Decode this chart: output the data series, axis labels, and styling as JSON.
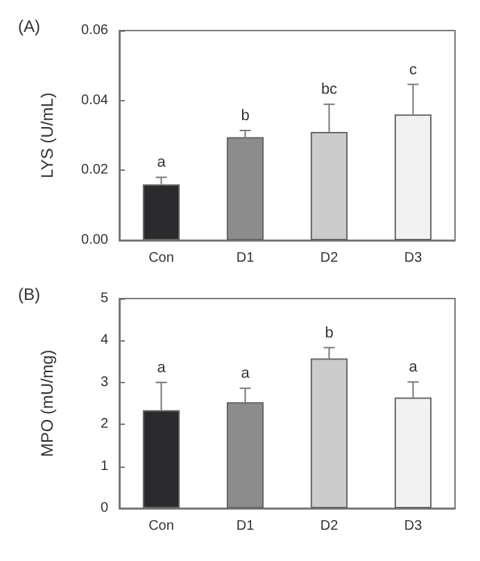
{
  "chart_data": [
    {
      "type": "bar",
      "title": "(A)",
      "ylabel": "LYS (U/mL)",
      "categories": [
        "Con",
        "D1",
        "D2",
        "D3"
      ],
      "values": [
        0.016,
        0.0295,
        0.031,
        0.036
      ],
      "colors": [
        "#2b2b2e",
        "#8c8c8c",
        "#cccccc",
        "#f2f2f2"
      ],
      "errors": [
        [
          0.016,
          0.018
        ],
        [
          0.0295,
          0.0314
        ],
        [
          0.031,
          0.0389
        ],
        [
          0.036,
          0.0446
        ]
      ],
      "ylim": [
        0,
        0.06
      ],
      "yticks": [
        {
          "value": 0,
          "label": "0.00"
        },
        {
          "value": 0.02,
          "label": "0.02"
        },
        {
          "value": 0.04,
          "label": "0.04"
        },
        {
          "value": 0.06,
          "label": "0.06"
        }
      ],
      "grid": false,
      "annotations": [
        {
          "text": "a",
          "x": "Con",
          "y": 0.018
        },
        {
          "text": "b",
          "x": "D1",
          "y": 0.0314
        },
        {
          "text": "bc",
          "x": "D2",
          "y": 0.0389
        },
        {
          "text": "c",
          "x": "D3",
          "y": 0.0446
        }
      ]
    },
    {
      "type": "bar",
      "title": "(B)",
      "ylabel": "MPO (mU/mg)",
      "categories": [
        "Con",
        "D1",
        "D2",
        "D3"
      ],
      "values": [
        2.34,
        2.53,
        3.57,
        2.64
      ],
      "colors": [
        "#2b2b2e",
        "#8c8c8c",
        "#cccccc",
        "#f2f2f2"
      ],
      "errors": [
        [
          2.34,
          3.0
        ],
        [
          2.53,
          2.86
        ],
        [
          3.57,
          3.83
        ],
        [
          2.64,
          3.01
        ]
      ],
      "ylim": [
        0,
        5
      ],
      "yticks": [
        0,
        1,
        2,
        3,
        4,
        5
      ],
      "grid": false,
      "annotations": [
        {
          "text": "a",
          "x": "Con",
          "y": 3.0
        },
        {
          "text": "a",
          "x": "D1",
          "y": 2.86
        },
        {
          "text": "b",
          "x": "D2",
          "y": 3.83
        },
        {
          "text": "a",
          "x": "D3",
          "y": 3.01
        }
      ]
    }
  ]
}
